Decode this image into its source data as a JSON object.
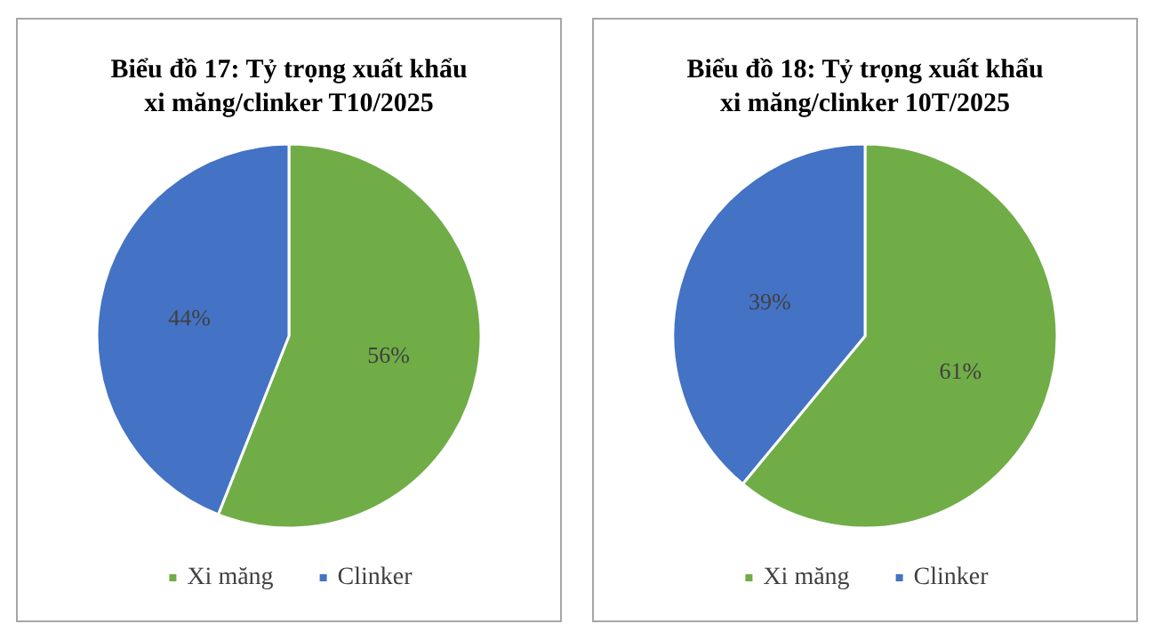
{
  "chart_data": [
    {
      "type": "pie",
      "title": "Biểu đồ 17: Tỷ trọng xuất khẩu\nxi măng/clinker T10/2025",
      "categories": [
        "Xi măng",
        "Clinker"
      ],
      "values": [
        56,
        44
      ],
      "value_labels": [
        "56%",
        "44%"
      ],
      "colors": [
        "#70ad47",
        "#4472c4"
      ],
      "legend": "bottom"
    },
    {
      "type": "pie",
      "title": "Biểu đồ 18: Tỷ trọng xuất khẩu\nxi măng/clinker 10T/2025",
      "categories": [
        "Xi măng",
        "Clinker"
      ],
      "values": [
        61,
        39
      ],
      "value_labels": [
        "61%",
        "39%"
      ],
      "colors": [
        "#70ad47",
        "#4472c4"
      ],
      "legend": "bottom"
    }
  ]
}
